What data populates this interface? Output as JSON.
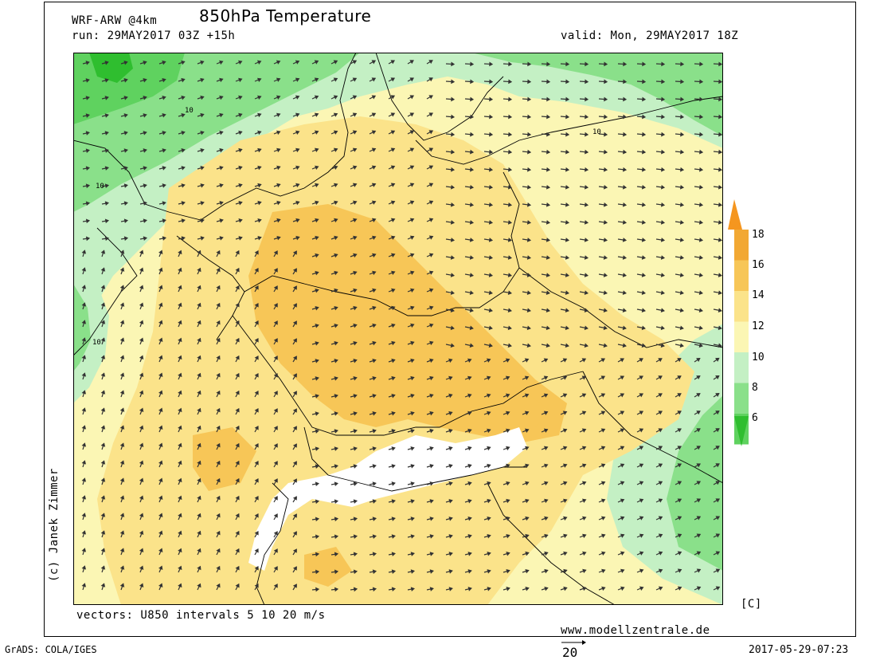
{
  "header": {
    "model": "WRF-ARW @4km",
    "title": "850hPa Temperature",
    "run": "run: 29MAY2017 03Z +15h",
    "valid": "valid: Mon, 29MAY2017 18Z"
  },
  "footer": {
    "vectors_note": "vectors: U850 intervals 5 10 20 m/s",
    "website": "www.modellzentrale.de",
    "grads": "GrADS: COLA/IGES",
    "ref_vector_value": "20",
    "timestamp": "2017-05-29-07:23"
  },
  "credit": "(c) Janek Zimmer",
  "legend": {
    "unit": "[C]",
    "ticks": [
      "6",
      "8",
      "10",
      "12",
      "14",
      "16",
      "18"
    ],
    "colors": [
      "#2fbe2f",
      "#5fd25f",
      "#8ae08a",
      "#c4f0c4",
      "#fbf6b4",
      "#fbe38a",
      "#f7c657",
      "#f2a833",
      "#f5961f"
    ]
  },
  "map_labels": {
    "contour_10_a": "10",
    "contour_10_b": "10",
    "contour_10_c": "10",
    "contour_10_d": "10"
  }
}
